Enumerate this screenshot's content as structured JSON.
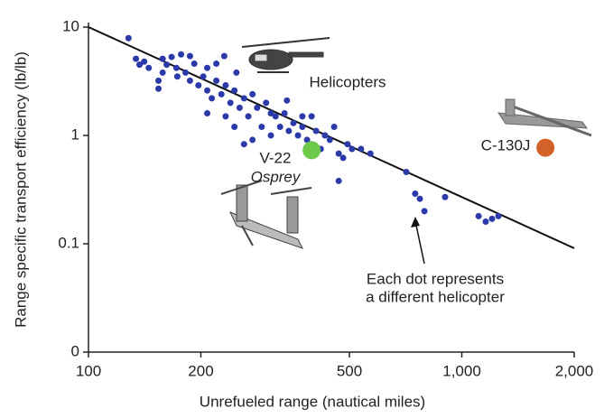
{
  "chart_data": {
    "type": "scatter",
    "x_label": "Unrefueled range (nautical miles)",
    "y_label": "Range specific transport efficiency (lb/lb)",
    "x_scale": "log",
    "y_scale": "log",
    "xlim": [
      100,
      2000
    ],
    "xticks": [
      100,
      200,
      500,
      {
        "value": 1000,
        "label": "1,000"
      },
      {
        "value": 2000,
        "label": "2,000"
      }
    ],
    "ylim": [
      0.01,
      10
    ],
    "yticks": [
      10,
      1,
      0.1,
      {
        "value": 0.01,
        "label": "0"
      }
    ],
    "series": [
      {
        "name": "Helicopters",
        "color": "#2b3aa8",
        "x": [
          128,
          134,
          137,
          141,
          145,
          154,
          154,
          158,
          162,
          167,
          172,
          177,
          182,
          187,
          187,
          192,
          197,
          203,
          208,
          208,
          214,
          220,
          227,
          233,
          240,
          246,
          249,
          254,
          261,
          268,
          275,
          283,
          291,
          299,
          308,
          317,
          326,
          335,
          344,
          354,
          364,
          374,
          385,
          396,
          407,
          419,
          430,
          443,
          455,
          468,
          481,
          494,
          508,
          537,
          569,
          468,
          710,
          750,
          772,
          794,
          902,
          1109,
          1159,
          1205,
          1253,
          208,
          233,
          246,
          275,
          261,
          308,
          374,
          340,
          396,
          173,
          158,
          220,
          231
        ],
        "values": [
          7.9,
          5.1,
          4.5,
          4.8,
          4.2,
          3.2,
          2.7,
          5.1,
          4.5,
          5.3,
          4.2,
          5.6,
          3.8,
          5.4,
          3.2,
          4.6,
          2.9,
          3.5,
          2.6,
          4.2,
          2.2,
          3.2,
          2.4,
          2.9,
          2.0,
          2.6,
          3.8,
          1.8,
          2.2,
          1.5,
          2.4,
          1.8,
          1.2,
          2.0,
          1.6,
          1.5,
          1.2,
          1.6,
          1.1,
          1.3,
          1.0,
          1.2,
          0.91,
          0.83,
          1.1,
          0.75,
          1.0,
          0.91,
          1.2,
          0.68,
          0.62,
          0.83,
          0.75,
          0.75,
          0.68,
          0.38,
          0.46,
          0.29,
          0.26,
          0.2,
          0.27,
          0.18,
          0.16,
          0.17,
          0.18,
          1.6,
          1.5,
          1.2,
          0.91,
          0.83,
          1.0,
          1.5,
          2.1,
          1.5,
          3.5,
          3.8,
          4.6,
          5.4
        ]
      },
      {
        "name": "V-22",
        "color": "#6cc94a",
        "x": [
          396
        ],
        "values": [
          0.73
        ]
      },
      {
        "name": "C-130J",
        "color": "#d2622a",
        "x": [
          1675
        ],
        "values": [
          0.77
        ]
      }
    ],
    "trend_line": {
      "color": "#111111",
      "x": [
        100,
        2000
      ],
      "values": [
        10,
        0.091
      ]
    },
    "annotations": [
      "Osprey",
      "Each dot represents",
      "a different helicopter"
    ]
  }
}
